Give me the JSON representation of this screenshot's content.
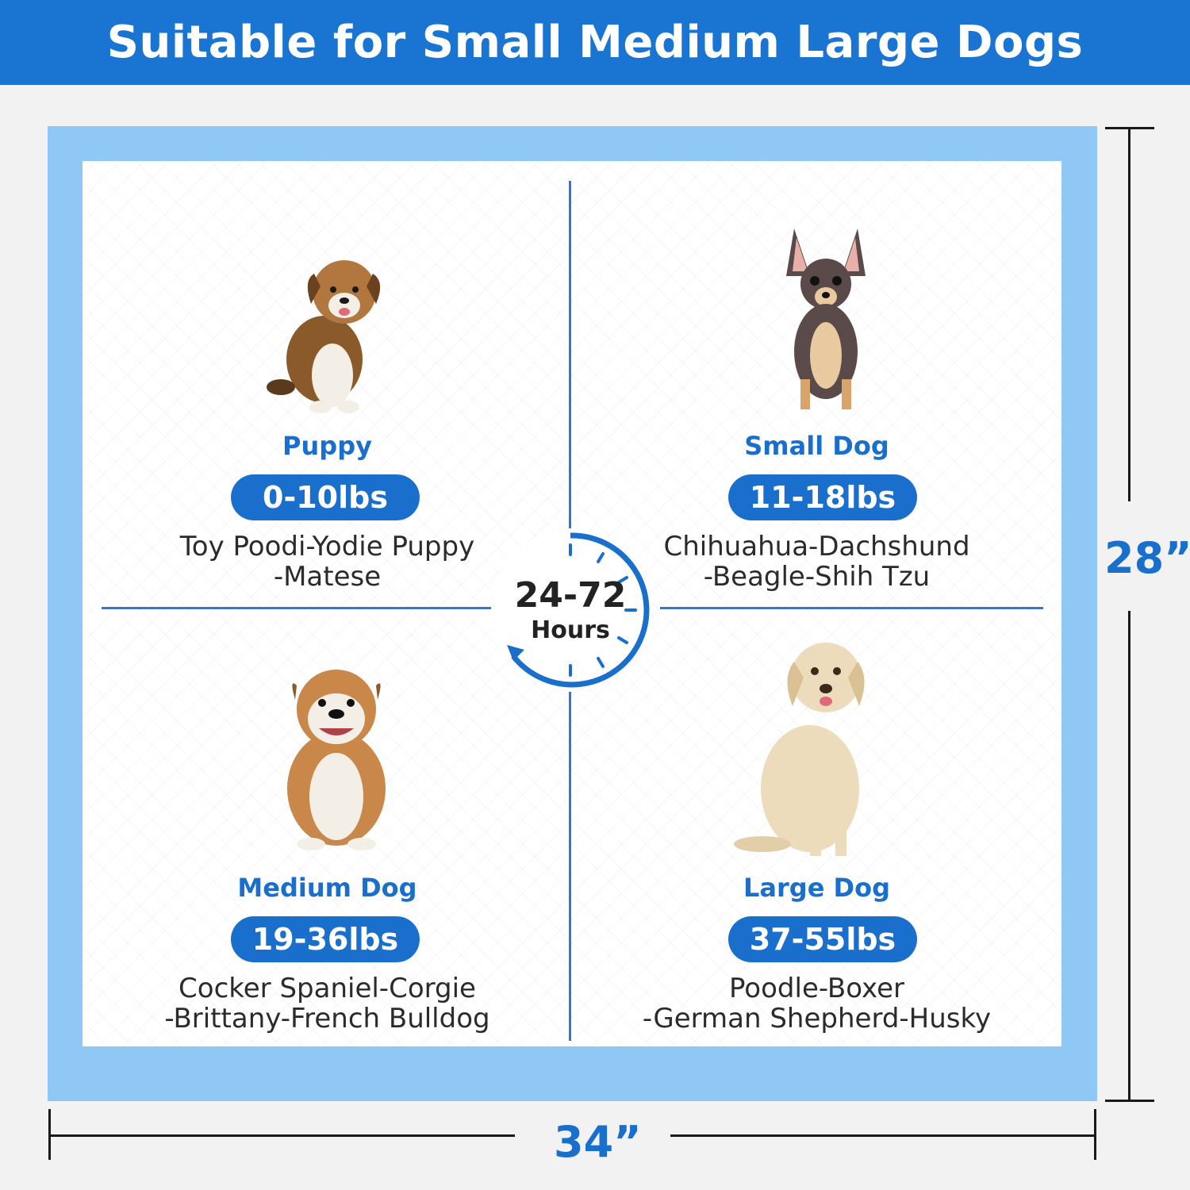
{
  "banner": {
    "title": "Suitable for Small Medium Large Dogs"
  },
  "center": {
    "range": "24-72",
    "unit": "Hours"
  },
  "dimensions": {
    "height": "28”",
    "width": "34”"
  },
  "quadrants": [
    {
      "name": "Puppy",
      "weight": "0-10lbs",
      "line1": "Toy Poodi-Yodie Puppy",
      "line2": "-Matese"
    },
    {
      "name": "Small Dog",
      "weight": "11-18lbs",
      "line1": "Chihuahua-Dachshund",
      "line2": "-Beagle-Shih Tzu"
    },
    {
      "name": "Medium Dog",
      "weight": "19-36lbs",
      "line1": "Cocker Spaniel-Corgie",
      "line2": "-Brittany-French Bulldog"
    },
    {
      "name": "Large Dog",
      "weight": "37-55lbs",
      "line1": "Poodle-Boxer",
      "line2": "-German Shepherd-Husky"
    }
  ],
  "colors": {
    "brand_blue": "#1a6fcc",
    "pad_blue": "#90c8f5",
    "banner_blue": "#1a75d2"
  }
}
